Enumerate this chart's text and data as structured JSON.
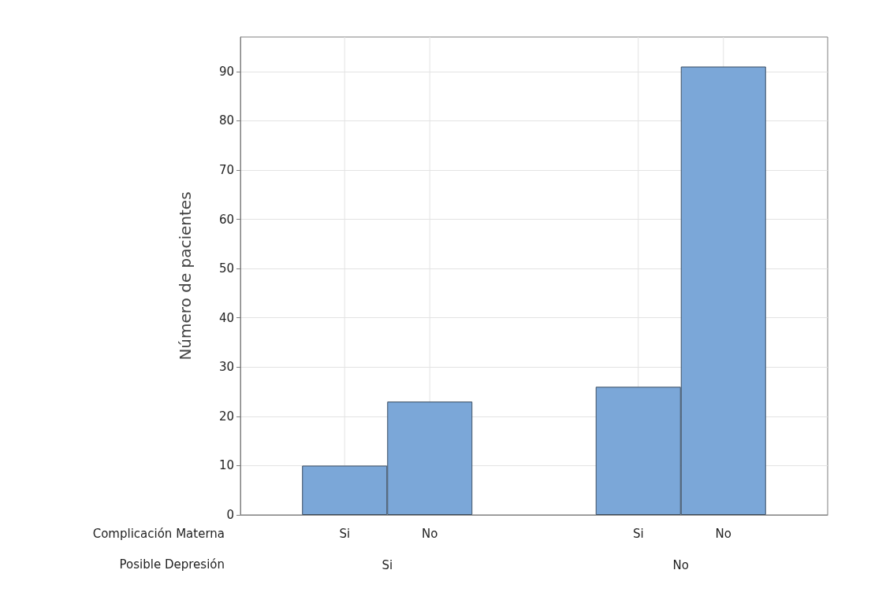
{
  "chart_data": {
    "type": "bar",
    "ylabel": "Número de pacientes",
    "xlabel": "Posible Depresión",
    "legend_title": "Complicación Materna",
    "categories": [
      "Si",
      "No"
    ],
    "series": [
      {
        "name": "Si",
        "color": "#7ba7d8",
        "values": [
          10,
          26
        ]
      },
      {
        "name": "No",
        "color": "#7ba7d8",
        "values": [
          23,
          91
        ]
      }
    ],
    "ylim": [
      0,
      97
    ],
    "yticks": [
      0,
      10,
      20,
      30,
      40,
      50,
      60,
      70,
      80,
      90
    ],
    "grid": true,
    "legend": false
  }
}
